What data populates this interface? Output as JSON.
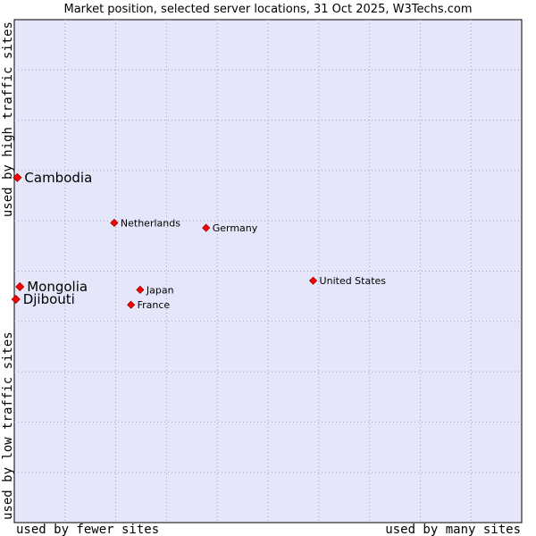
{
  "chart_data": {
    "type": "scatter",
    "title": "Market position, selected server locations, 31 Oct 2025, W3Techs.com",
    "xlabel_left": "used by fewer sites",
    "xlabel_right": "used by many sites",
    "ylabel_bottom": "used by low traffic sites",
    "ylabel_top": "used by high traffic sites",
    "xlim": [
      0,
      100
    ],
    "ylim": [
      0,
      100
    ],
    "grid": true,
    "colors": {
      "plot_background": "#e6e6fa",
      "grid": "#a0a0b8",
      "point": "#ff0000",
      "point_outline": "#990000"
    },
    "points": [
      {
        "label": "Cambodia",
        "x": 0.6,
        "y": 68.6,
        "emphasis": true
      },
      {
        "label": "Netherlands",
        "x": 19.7,
        "y": 59.6,
        "emphasis": false
      },
      {
        "label": "Germany",
        "x": 37.8,
        "y": 58.6,
        "emphasis": false
      },
      {
        "label": "Mongolia",
        "x": 1.1,
        "y": 46.9,
        "emphasis": true
      },
      {
        "label": "Japan",
        "x": 24.8,
        "y": 46.3,
        "emphasis": false
      },
      {
        "label": "United States",
        "x": 58.9,
        "y": 48.1,
        "emphasis": false
      },
      {
        "label": "Djibouti",
        "x": 0.3,
        "y": 44.4,
        "emphasis": true
      },
      {
        "label": "France",
        "x": 23.0,
        "y": 43.3,
        "emphasis": false
      }
    ]
  }
}
